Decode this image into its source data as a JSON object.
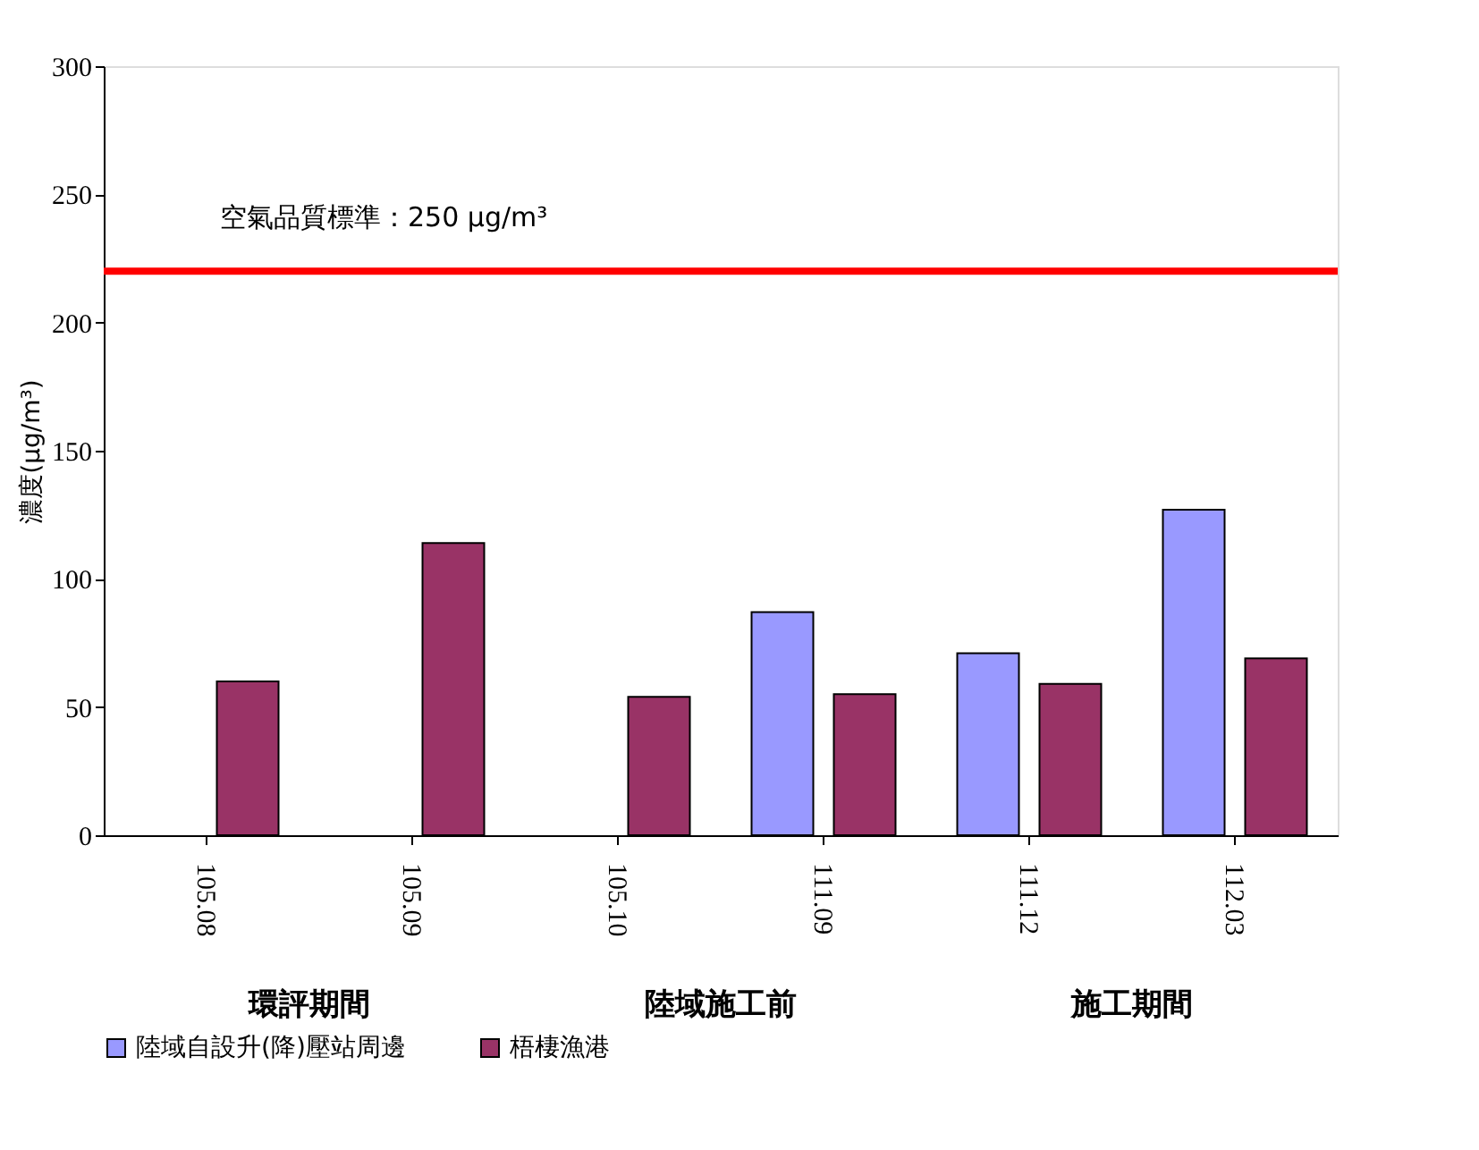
{
  "chart_data": {
    "type": "bar",
    "ylabel": "濃度(μg/m³)",
    "categories": [
      "105.08",
      "105.09",
      "105.10",
      "111.09",
      "111.12",
      "112.03"
    ],
    "series": [
      {
        "name": "陸域自設升(降)壓站周邊",
        "color": "#9999ff",
        "values": [
          null,
          null,
          null,
          87,
          71,
          127
        ]
      },
      {
        "name": "梧棲漁港",
        "color": "#993366",
        "values": [
          60,
          114,
          54,
          55,
          59,
          69
        ]
      }
    ],
    "ylim": [
      0,
      300
    ],
    "yticks": [
      0,
      50,
      100,
      150,
      200,
      250,
      300
    ],
    "grid": false,
    "legend": "bottom",
    "ref_lines": [
      {
        "axis": "y",
        "value": 220,
        "label": "空氣品質標準：250 μg/m³",
        "color": "#ff0000"
      }
    ],
    "annotations": [
      "環評期間",
      "陸域施工前",
      "施工期間"
    ]
  }
}
